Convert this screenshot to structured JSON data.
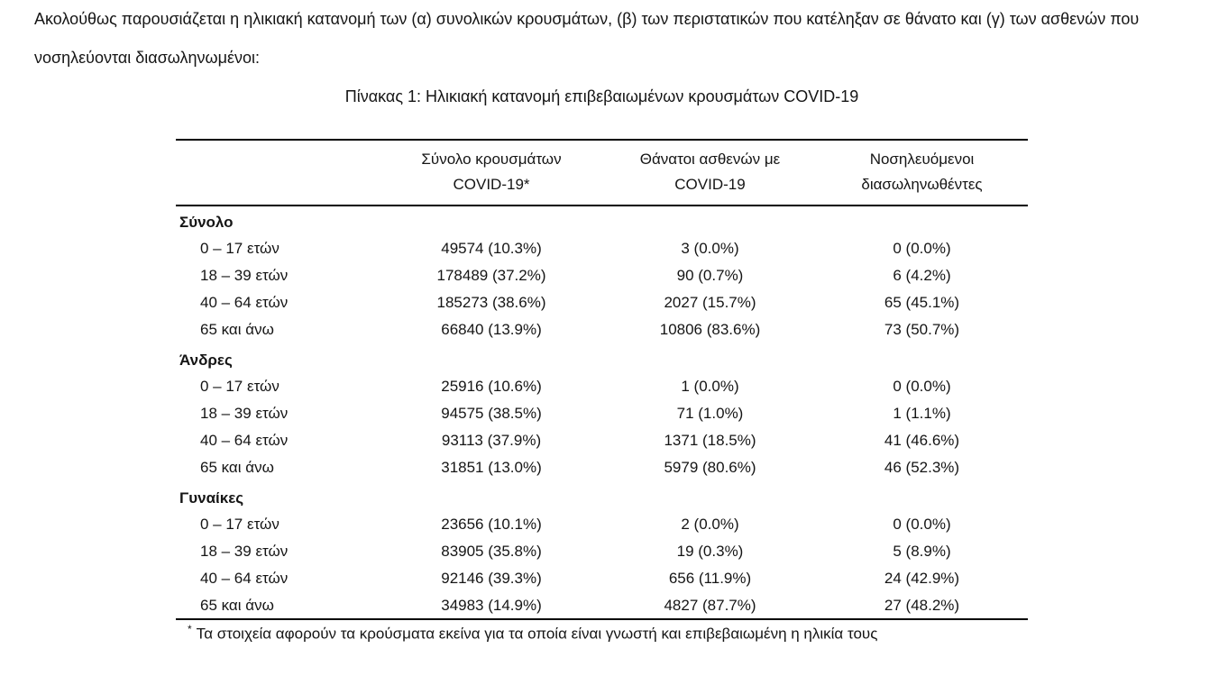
{
  "colors": {
    "text": "#151515",
    "background": "#ffffff",
    "rule": "#000000"
  },
  "intro": {
    "text": "Ακολούθως παρουσιάζεται η ηλικιακή κατανομή των (α) συνολικών κρουσμάτων, (β) των περιστατικών που κατέληξαν σε θάνατο και (γ) των ασθενών που νοσηλεύονται διασωληνωμένοι:"
  },
  "table": {
    "title": "Πίνακας 1: Ηλικιακή κατανομή επιβεβαιωμένων κρουσμάτων COVID-19",
    "header": {
      "age": "",
      "cases": {
        "line1": "Σύνολο κρουσμάτων",
        "line2": "COVID-19*"
      },
      "deaths": {
        "line1": "Θάνατοι ασθενών με",
        "line2": "COVID-19"
      },
      "intubated": {
        "line1": "Νοσηλευόμενοι",
        "line2": "διασωληνωθέντες"
      }
    },
    "sections": [
      {
        "label": "Σύνολο",
        "rows": [
          {
            "age": "0 – 17 ετών",
            "cases": "49574 (10.3%)",
            "deaths": "3 (0.0%)",
            "intubated": "0 (0.0%)"
          },
          {
            "age": "18 – 39 ετών",
            "cases": "178489 (37.2%)",
            "deaths": "90 (0.7%)",
            "intubated": "6 (4.2%)"
          },
          {
            "age": "40 – 64 ετών",
            "cases": "185273 (38.6%)",
            "deaths": "2027 (15.7%)",
            "intubated": "65 (45.1%)"
          },
          {
            "age": "65 και άνω",
            "cases": "66840 (13.9%)",
            "deaths": "10806 (83.6%)",
            "intubated": "73 (50.7%)"
          }
        ]
      },
      {
        "label": "Άνδρες",
        "rows": [
          {
            "age": "0 – 17 ετών",
            "cases": "25916 (10.6%)",
            "deaths": "1 (0.0%)",
            "intubated": "0 (0.0%)"
          },
          {
            "age": "18 – 39 ετών",
            "cases": "94575 (38.5%)",
            "deaths": "71 (1.0%)",
            "intubated": "1 (1.1%)"
          },
          {
            "age": "40 – 64 ετών",
            "cases": "93113 (37.9%)",
            "deaths": "1371 (18.5%)",
            "intubated": "41 (46.6%)"
          },
          {
            "age": "65 και άνω",
            "cases": "31851 (13.0%)",
            "deaths": "5979 (80.6%)",
            "intubated": "46 (52.3%)"
          }
        ]
      },
      {
        "label": "Γυναίκες",
        "rows": [
          {
            "age": "0 – 17 ετών",
            "cases": "23656 (10.1%)",
            "deaths": "2 (0.0%)",
            "intubated": "0 (0.0%)"
          },
          {
            "age": "18 – 39 ετών",
            "cases": "83905 (35.8%)",
            "deaths": "19 (0.3%)",
            "intubated": "5 (8.9%)"
          },
          {
            "age": "40 – 64 ετών",
            "cases": "92146 (39.3%)",
            "deaths": "656 (11.9%)",
            "intubated": "24 (42.9%)"
          },
          {
            "age": "65 και άνω",
            "cases": "34983 (14.9%)",
            "deaths": "4827 (87.7%)",
            "intubated": "27 (48.2%)"
          }
        ]
      }
    ],
    "footnote": {
      "marker": "*",
      "text": "Τα στοιχεία αφορούν τα κρούσματα εκείνα για τα οποία είναι γνωστή και επιβεβαιωμένη η ηλικία τους"
    }
  }
}
